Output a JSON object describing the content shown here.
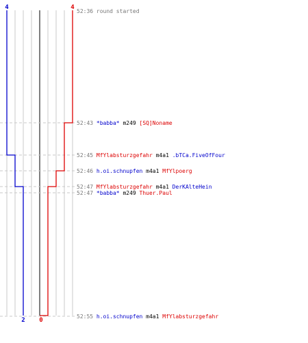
{
  "colors": {
    "team_blue": "#0000cc",
    "team_red": "#dd0000",
    "time_gray": "#777777",
    "player_black": "#000000",
    "grid_light": "#c8c8c8",
    "grid_dark": "#555555"
  },
  "score_labels": {
    "blue_start": "4",
    "red_start": "4",
    "blue_end": "2",
    "red_end": "0"
  },
  "events": [
    {
      "time": "52:36",
      "parts": [
        {
          "text": "round started",
          "team": "gray"
        }
      ]
    },
    {
      "time": "52:43",
      "parts": [
        {
          "text": "*babba*",
          "team": "blue"
        },
        {
          "text": "m249",
          "team": "neutral"
        },
        {
          "text": "[SQ]Noname",
          "team": "red"
        }
      ]
    },
    {
      "time": "52:45",
      "parts": [
        {
          "text": "MfYlabsturzgefahr",
          "team": "red"
        },
        {
          "text": "m4a1",
          "team": "neutral"
        },
        {
          "text": ".bTCa.FiveOfFour",
          "team": "blue"
        }
      ]
    },
    {
      "time": "52:46",
      "parts": [
        {
          "text": "h.oi.schnupfen",
          "team": "blue"
        },
        {
          "text": "m4a1",
          "team": "neutral"
        },
        {
          "text": "MfYlpoerg",
          "team": "red"
        }
      ]
    },
    {
      "time": "52:47",
      "parts": [
        {
          "text": "MfYlabsturzgefahr",
          "team": "red"
        },
        {
          "text": "m4a1",
          "team": "neutral"
        },
        {
          "text": "DerKAlteHein",
          "team": "blue"
        }
      ]
    },
    {
      "time": "52:47",
      "parts": [
        {
          "text": "*babba*",
          "team": "blue"
        },
        {
          "text": "m249",
          "team": "neutral"
        },
        {
          "text": "Thuer.Paul",
          "team": "red"
        }
      ]
    },
    {
      "time": "52:55",
      "parts": [
        {
          "text": "h.oi.schnupfen",
          "team": "blue"
        },
        {
          "text": "m4a1",
          "team": "neutral"
        },
        {
          "text": "MfYlabsturzgefahr",
          "team": "red"
        }
      ]
    }
  ]
}
